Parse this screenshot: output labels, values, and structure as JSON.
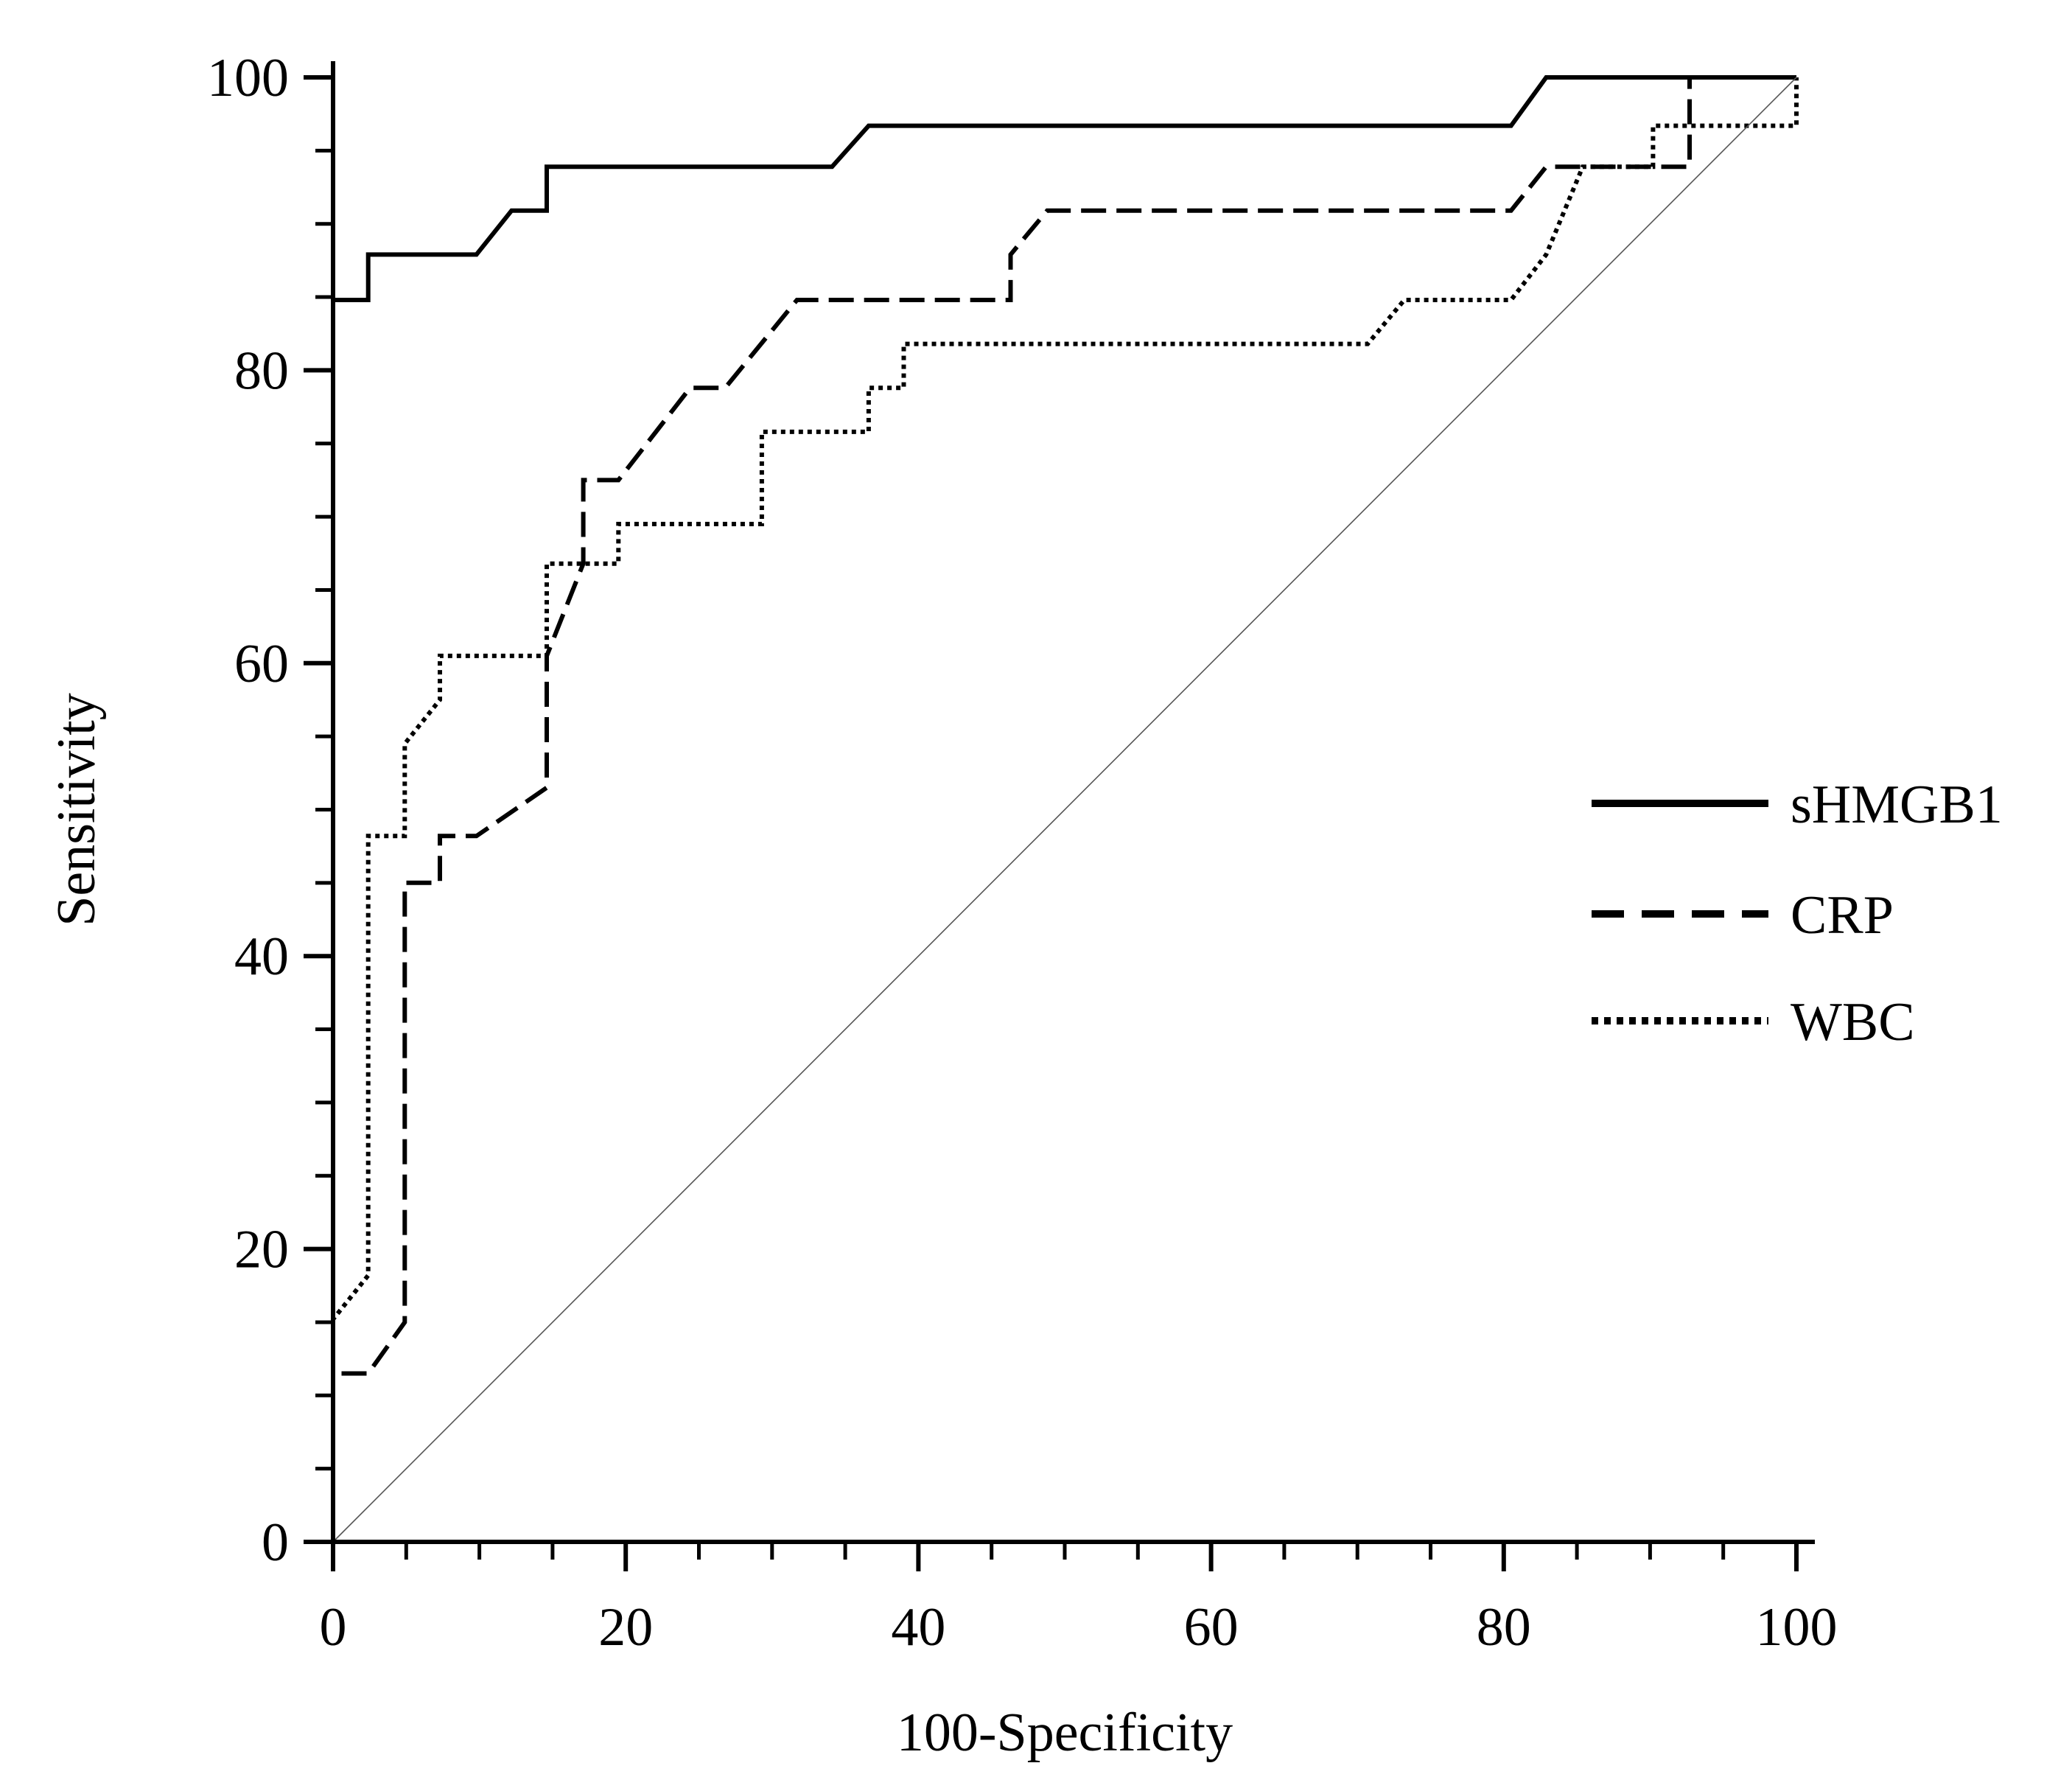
{
  "chart_data": {
    "type": "line",
    "title": "",
    "xlabel": "100-Specificity",
    "ylabel": "Sensitivity",
    "xlim": [
      0,
      100
    ],
    "ylim": [
      0,
      100
    ],
    "x_ticks": [
      0,
      20,
      40,
      60,
      80,
      100
    ],
    "y_ticks": [
      0,
      20,
      40,
      60,
      80,
      100
    ],
    "x_tick_labels": [
      "0",
      "20",
      "40",
      "60",
      "80",
      "100"
    ],
    "y_tick_labels": [
      "0",
      "20",
      "40",
      "60",
      "80",
      "100"
    ],
    "minor_tick_step": 5,
    "grid": false,
    "legend_position": "right",
    "series": [
      {
        "name": "sHMGB1",
        "style": "solid",
        "points": [
          [
            0,
            0
          ],
          [
            0,
            84.8
          ],
          [
            2.4,
            84.8
          ],
          [
            2.4,
            87.9
          ],
          [
            9.8,
            87.9
          ],
          [
            12.2,
            90.9
          ],
          [
            14.6,
            90.9
          ],
          [
            14.6,
            93.9
          ],
          [
            34.1,
            93.9
          ],
          [
            36.6,
            96.7
          ],
          [
            80.5,
            96.7
          ],
          [
            82.9,
            100
          ],
          [
            100,
            100
          ]
        ]
      },
      {
        "name": "CRP",
        "style": "dashed",
        "points": [
          [
            0,
            0
          ],
          [
            0,
            11.5
          ],
          [
            2.4,
            11.5
          ],
          [
            4.9,
            15
          ],
          [
            4.9,
            45
          ],
          [
            7.3,
            45
          ],
          [
            7.3,
            48.2
          ],
          [
            9.8,
            48.2
          ],
          [
            14.6,
            51.5
          ],
          [
            14.6,
            60.5
          ],
          [
            17.1,
            66.8
          ],
          [
            17.1,
            72.5
          ],
          [
            19.5,
            72.5
          ],
          [
            24.4,
            78.8
          ],
          [
            26.8,
            78.8
          ],
          [
            31.7,
            84.8
          ],
          [
            46.3,
            84.8
          ],
          [
            46.3,
            87.9
          ],
          [
            48.8,
            90.9
          ],
          [
            80.5,
            90.9
          ],
          [
            82.9,
            93.9
          ],
          [
            92.7,
            93.9
          ],
          [
            92.7,
            100
          ],
          [
            100,
            100
          ]
        ]
      },
      {
        "name": "WBC",
        "style": "dotted",
        "points": [
          [
            0,
            0
          ],
          [
            0,
            15.2
          ],
          [
            2.4,
            18.2
          ],
          [
            2.4,
            48.2
          ],
          [
            4.9,
            48.2
          ],
          [
            4.9,
            54.5
          ],
          [
            7.3,
            57.5
          ],
          [
            7.3,
            60.5
          ],
          [
            14.6,
            60.5
          ],
          [
            14.6,
            66.8
          ],
          [
            19.5,
            66.8
          ],
          [
            19.5,
            69.5
          ],
          [
            29.3,
            69.5
          ],
          [
            29.3,
            75.8
          ],
          [
            36.6,
            75.8
          ],
          [
            36.6,
            78.8
          ],
          [
            39,
            78.8
          ],
          [
            39,
            81.8
          ],
          [
            70.7,
            81.8
          ],
          [
            73.2,
            84.8
          ],
          [
            80.5,
            84.8
          ],
          [
            82.9,
            87.9
          ],
          [
            85.4,
            93.9
          ],
          [
            90.2,
            93.9
          ],
          [
            90.2,
            96.7
          ],
          [
            100,
            96.7
          ],
          [
            100,
            100
          ]
        ]
      },
      {
        "name": "reference",
        "style": "thin",
        "points": [
          [
            0,
            0
          ],
          [
            100,
            100
          ]
        ]
      }
    ],
    "legend": [
      {
        "label": "sHMGB1",
        "style": "solid"
      },
      {
        "label": "CRP",
        "style": "dashed"
      },
      {
        "label": "WBC",
        "style": "dotted"
      }
    ]
  }
}
